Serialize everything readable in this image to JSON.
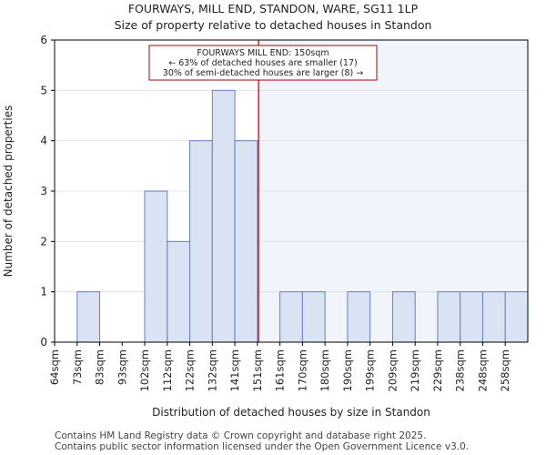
{
  "chart_data": {
    "type": "bar",
    "title": "FOURWAYS, MILL END, STANDON, WARE, SG11 1LP",
    "subtitle": "Size of property relative to detached houses in Standon",
    "xlabel": "Distribution of detached houses by size in Standon",
    "ylabel": "Number of detached properties",
    "categories": [
      "64sqm",
      "73sqm",
      "83sqm",
      "93sqm",
      "102sqm",
      "112sqm",
      "122sqm",
      "132sqm",
      "141sqm",
      "151sqm",
      "161sqm",
      "170sqm",
      "180sqm",
      "190sqm",
      "199sqm",
      "209sqm",
      "219sqm",
      "229sqm",
      "238sqm",
      "248sqm",
      "258sqm"
    ],
    "values": [
      0,
      1,
      0,
      0,
      3,
      2,
      4,
      5,
      4,
      0,
      1,
      1,
      0,
      1,
      0,
      1,
      0,
      1,
      1,
      1,
      1
    ],
    "ylim": [
      0,
      6
    ],
    "yticks": [
      "0",
      "1",
      "2",
      "3",
      "4",
      "5",
      "6"
    ],
    "marker_bin_fraction": 9.05,
    "annotation": {
      "line1": "FOURWAYS MILL END: 150sqm",
      "line2": "← 63% of detached houses are smaller (17)",
      "line3": "30% of semi-detached houses are larger (8) →"
    },
    "colors": {
      "bar_fill": "#dae3f4",
      "bar_stroke": "#6680bd",
      "marker": "#aa0000",
      "highlight_bg": "#f1f4fb",
      "grid": "#dddddd"
    }
  },
  "footer": {
    "line1": "Contains HM Land Registry data © Crown copyright and database right 2025.",
    "line2": "Contains public sector information licensed under the Open Government Licence v3.0."
  }
}
